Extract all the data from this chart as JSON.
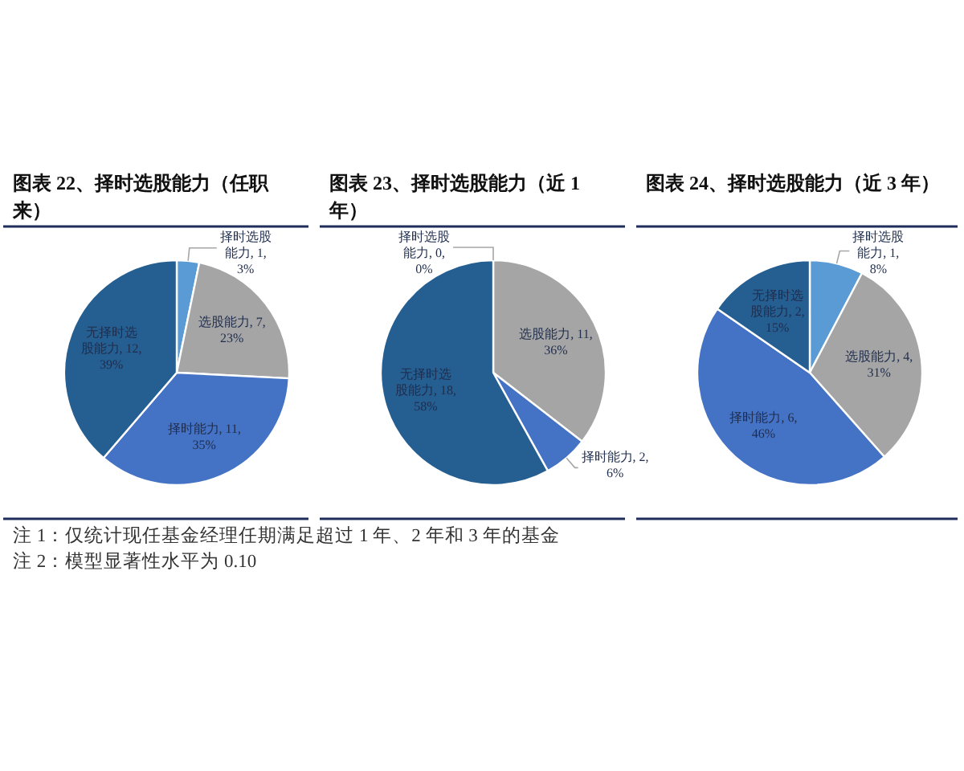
{
  "chart_data": [
    {
      "type": "pie",
      "title": "图表 22、择时选股能力（任职来）",
      "categories": [
        "择时选股能力",
        "选股能力",
        "择时能力",
        "无择时选股能力"
      ],
      "values": [
        1,
        7,
        11,
        12
      ],
      "colors": [
        "#5b9bd5",
        "#a5a5a5",
        "#4472c4",
        "#255e91"
      ],
      "value_labels": [
        "1, 3%",
        "7, 23%",
        "11, 35%",
        "12, 39%"
      ],
      "annotations": [
        "注 1：仅统计现任基金经理任期满足超过 1 年、2 年和 3 年的基金",
        "注 2：模型显著性水平为 0.10"
      ]
    },
    {
      "type": "pie",
      "title": "图表 23、择时选股能力（近 1 年）",
      "categories": [
        "择时选股能力",
        "选股能力",
        "择时能力",
        "无择时选股能力"
      ],
      "values": [
        0,
        11,
        2,
        18
      ],
      "colors": [
        "#5b9bd5",
        "#a5a5a5",
        "#4472c4",
        "#255e91"
      ],
      "value_labels": [
        "0, 0%",
        "11, 36%",
        "2, 6%",
        "18, 58%"
      ]
    },
    {
      "type": "pie",
      "title": "图表 24、择时选股能力（近 3 年）",
      "categories": [
        "择时选股能力",
        "选股能力",
        "择时能力",
        "无择时选股能力"
      ],
      "values": [
        1,
        4,
        6,
        2
      ],
      "colors": [
        "#5b9bd5",
        "#a5a5a5",
        "#4472c4",
        "#255e91"
      ],
      "value_labels": [
        "1, 8%",
        "4, 31%",
        "6, 46%",
        "2, 15%"
      ]
    }
  ]
}
